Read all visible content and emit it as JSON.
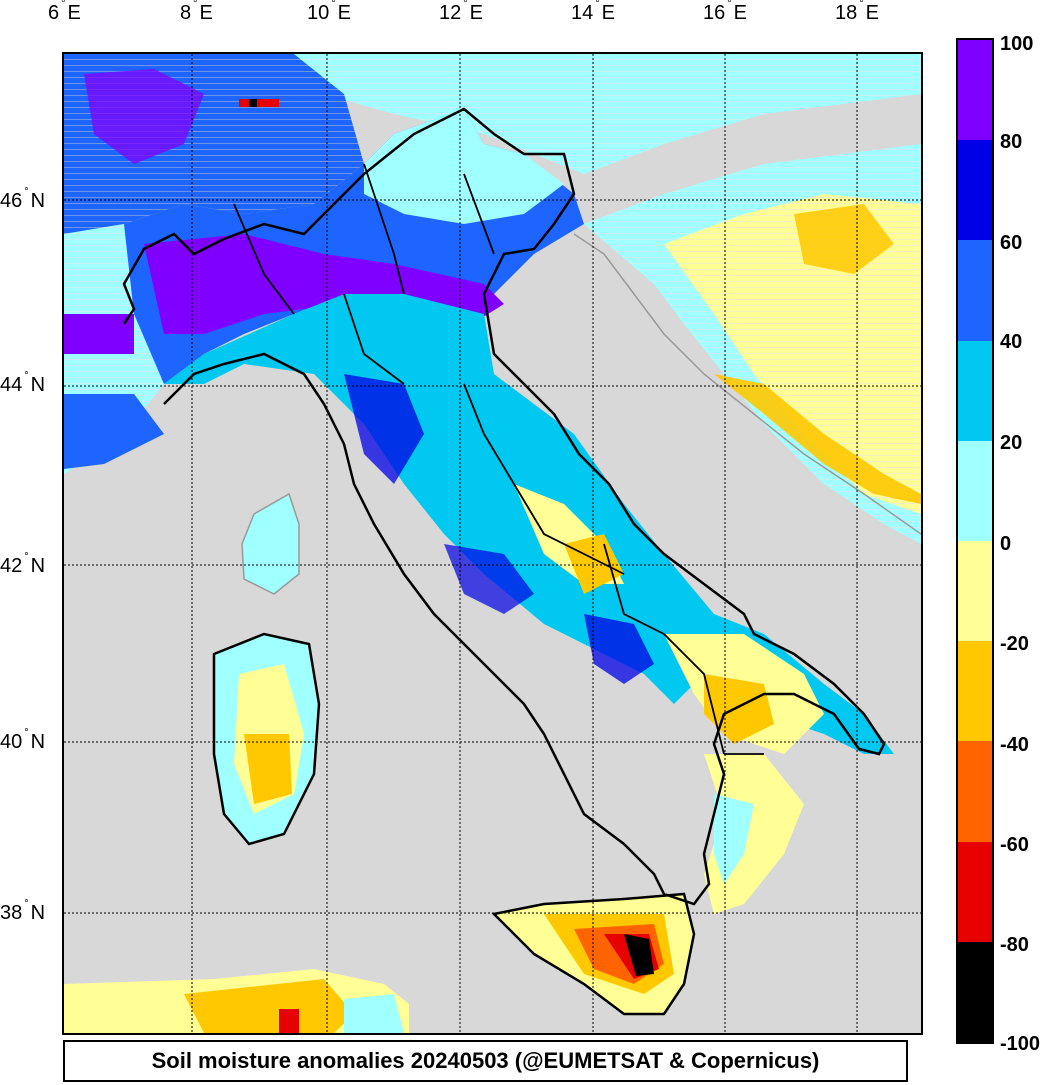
{
  "caption": "Soil moisture anomalies 20240503 (@EUMETSAT & Copernicus)",
  "lon_labels": [
    {
      "deg": "6",
      "dir": "E"
    },
    {
      "deg": "8",
      "dir": "E"
    },
    {
      "deg": "10",
      "dir": "E"
    },
    {
      "deg": "12",
      "dir": "E"
    },
    {
      "deg": "14",
      "dir": "E"
    },
    {
      "deg": "16",
      "dir": "E"
    },
    {
      "deg": "18",
      "dir": "E"
    }
  ],
  "lat_labels": [
    {
      "deg": "46",
      "dir": "N"
    },
    {
      "deg": "44",
      "dir": "N"
    },
    {
      "deg": "42",
      "dir": "N"
    },
    {
      "deg": "40",
      "dir": "N"
    },
    {
      "deg": "38",
      "dir": "N"
    }
  ],
  "colorbar": {
    "ticks": [
      "100",
      "80",
      "60",
      "40",
      "20",
      "0",
      "-20",
      "-40",
      "-60",
      "-80",
      "-100"
    ],
    "colors": [
      "#8000ff",
      "#0000e6",
      "#1e64ff",
      "#00c8f0",
      "#a0ffff",
      "#ffff96",
      "#ffc800",
      "#ff6400",
      "#e60000",
      "#000000"
    ]
  },
  "colors": {
    "land_bg": "#d8d8d8",
    "grid": "#000000",
    "border": "#000000",
    "coast_foreign": "#999999"
  }
}
